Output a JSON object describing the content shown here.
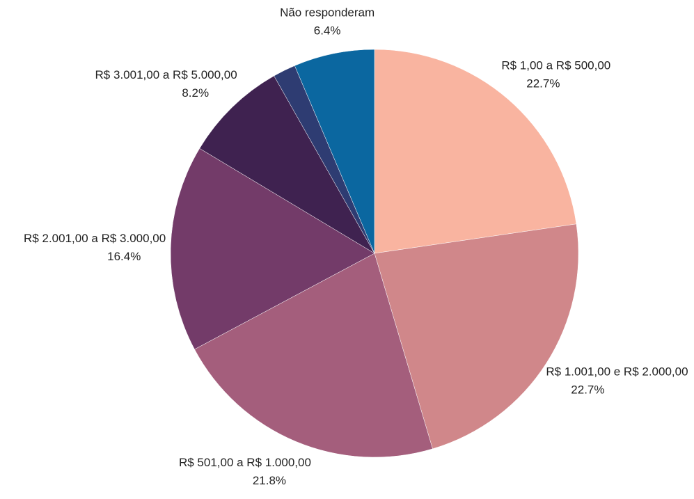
{
  "chart_data": {
    "type": "pie",
    "categories": [
      "R$ 1,00 a R$ 500,00",
      "R$ 1.001,00 e R$ 2.000,00",
      "R$ 501,00 a R$ 1.000,00",
      "R$ 2.001,00 a R$ 3.000,00",
      "R$ 3.001,00 a R$ 5.000,00",
      null,
      "Não responderam"
    ],
    "values": [
      22.7,
      22.7,
      21.8,
      16.4,
      8.2,
      1.8,
      6.4
    ],
    "value_labels": [
      "22.7%",
      "22.7%",
      "21.8%",
      "16.4%",
      "8.2%",
      null,
      "6.4%"
    ],
    "colors": [
      "#f9b4a0",
      "#d0878a",
      "#a45e7c",
      "#733b69",
      "#3f2250",
      "#2e3c72",
      "#0b67a0"
    ]
  }
}
